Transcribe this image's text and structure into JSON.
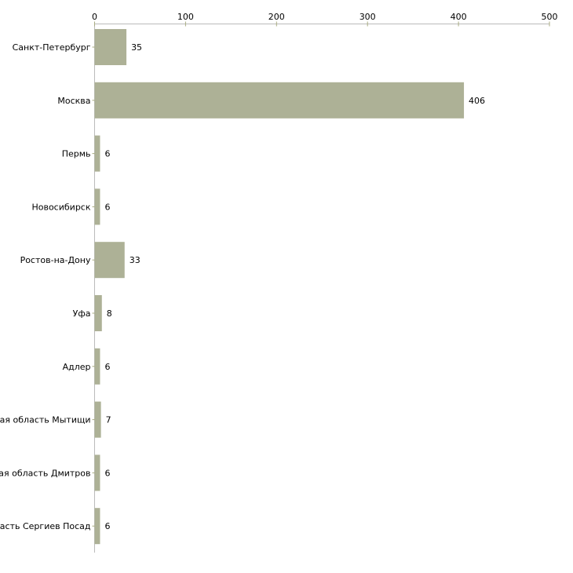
{
  "chart_data": {
    "type": "bar",
    "orientation": "horizontal",
    "title": "",
    "xlabel": "",
    "ylabel": "",
    "xlim": [
      0,
      500
    ],
    "x_ticks": [
      0,
      100,
      200,
      300,
      400,
      500
    ],
    "categories": [
      "Санкт-Петербург",
      "Москва",
      "Пермь",
      "Новосибирск",
      "Ростов-на-Дону",
      "Уфа",
      "Адлер",
      "Московская область Мытищи",
      "Московская область Дмитров",
      "Московская область Сергиев Посад"
    ],
    "values": [
      35,
      406,
      6,
      6,
      33,
      8,
      6,
      7,
      6,
      6
    ],
    "grid": false,
    "legend": "none",
    "colors": {
      "bar": "#adb196",
      "axis": "#bbbbbb",
      "tick": "#a8ab80",
      "text": "#000000"
    }
  }
}
